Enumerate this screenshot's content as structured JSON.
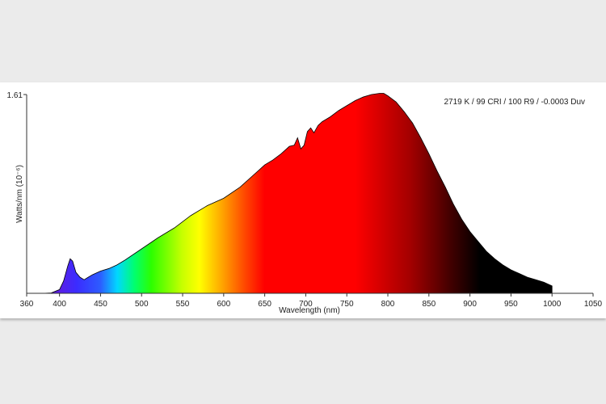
{
  "chart_data": {
    "type": "area",
    "annotation": "2719 K / 99 CRI / 100 R9 / -0.0003 Duv",
    "xlabel": "Wavelength (nm)",
    "ylabel": "Watts/nm (10⁻⁶)",
    "xlim": [
      360,
      1050
    ],
    "ylim": [
      0,
      1.61
    ],
    "x_ticks": [
      360,
      400,
      450,
      500,
      550,
      600,
      650,
      700,
      750,
      800,
      850,
      900,
      950,
      1000,
      1050
    ],
    "y_ticks": [
      1.61
    ],
    "x_tick_labels": [
      "360",
      "400",
      "450",
      "500",
      "550",
      "600",
      "650",
      "700",
      "750",
      "800",
      "850",
      "900",
      "950",
      "1000",
      "1050"
    ],
    "y_tick_labels": [
      "1.61"
    ],
    "grid": false,
    "fill": "visible-spectrum gradient (violet through red, fading to black in the infrared)",
    "x": [
      380,
      390,
      400,
      405,
      410,
      413,
      416,
      420,
      425,
      430,
      435,
      440,
      450,
      460,
      470,
      480,
      500,
      520,
      540,
      560,
      580,
      600,
      620,
      640,
      650,
      660,
      670,
      680,
      686,
      690,
      694,
      698,
      702,
      706,
      710,
      715,
      720,
      730,
      740,
      750,
      760,
      770,
      780,
      790,
      795,
      800,
      810,
      820,
      830,
      840,
      850,
      860,
      870,
      880,
      890,
      900,
      910,
      920,
      930,
      940,
      950,
      960,
      970,
      980,
      990,
      1000,
      1000
    ],
    "y": [
      0.0,
      0.003,
      0.03,
      0.1,
      0.22,
      0.28,
      0.26,
      0.17,
      0.13,
      0.11,
      0.13,
      0.15,
      0.18,
      0.2,
      0.23,
      0.27,
      0.36,
      0.45,
      0.53,
      0.63,
      0.71,
      0.77,
      0.86,
      0.98,
      1.04,
      1.08,
      1.13,
      1.19,
      1.2,
      1.26,
      1.17,
      1.2,
      1.31,
      1.34,
      1.3,
      1.36,
      1.39,
      1.43,
      1.48,
      1.52,
      1.56,
      1.59,
      1.61,
      1.62,
      1.62,
      1.6,
      1.55,
      1.47,
      1.38,
      1.26,
      1.13,
      0.99,
      0.86,
      0.72,
      0.6,
      0.5,
      0.42,
      0.34,
      0.28,
      0.23,
      0.19,
      0.16,
      0.13,
      0.11,
      0.09,
      0.06,
      0.0
    ]
  }
}
